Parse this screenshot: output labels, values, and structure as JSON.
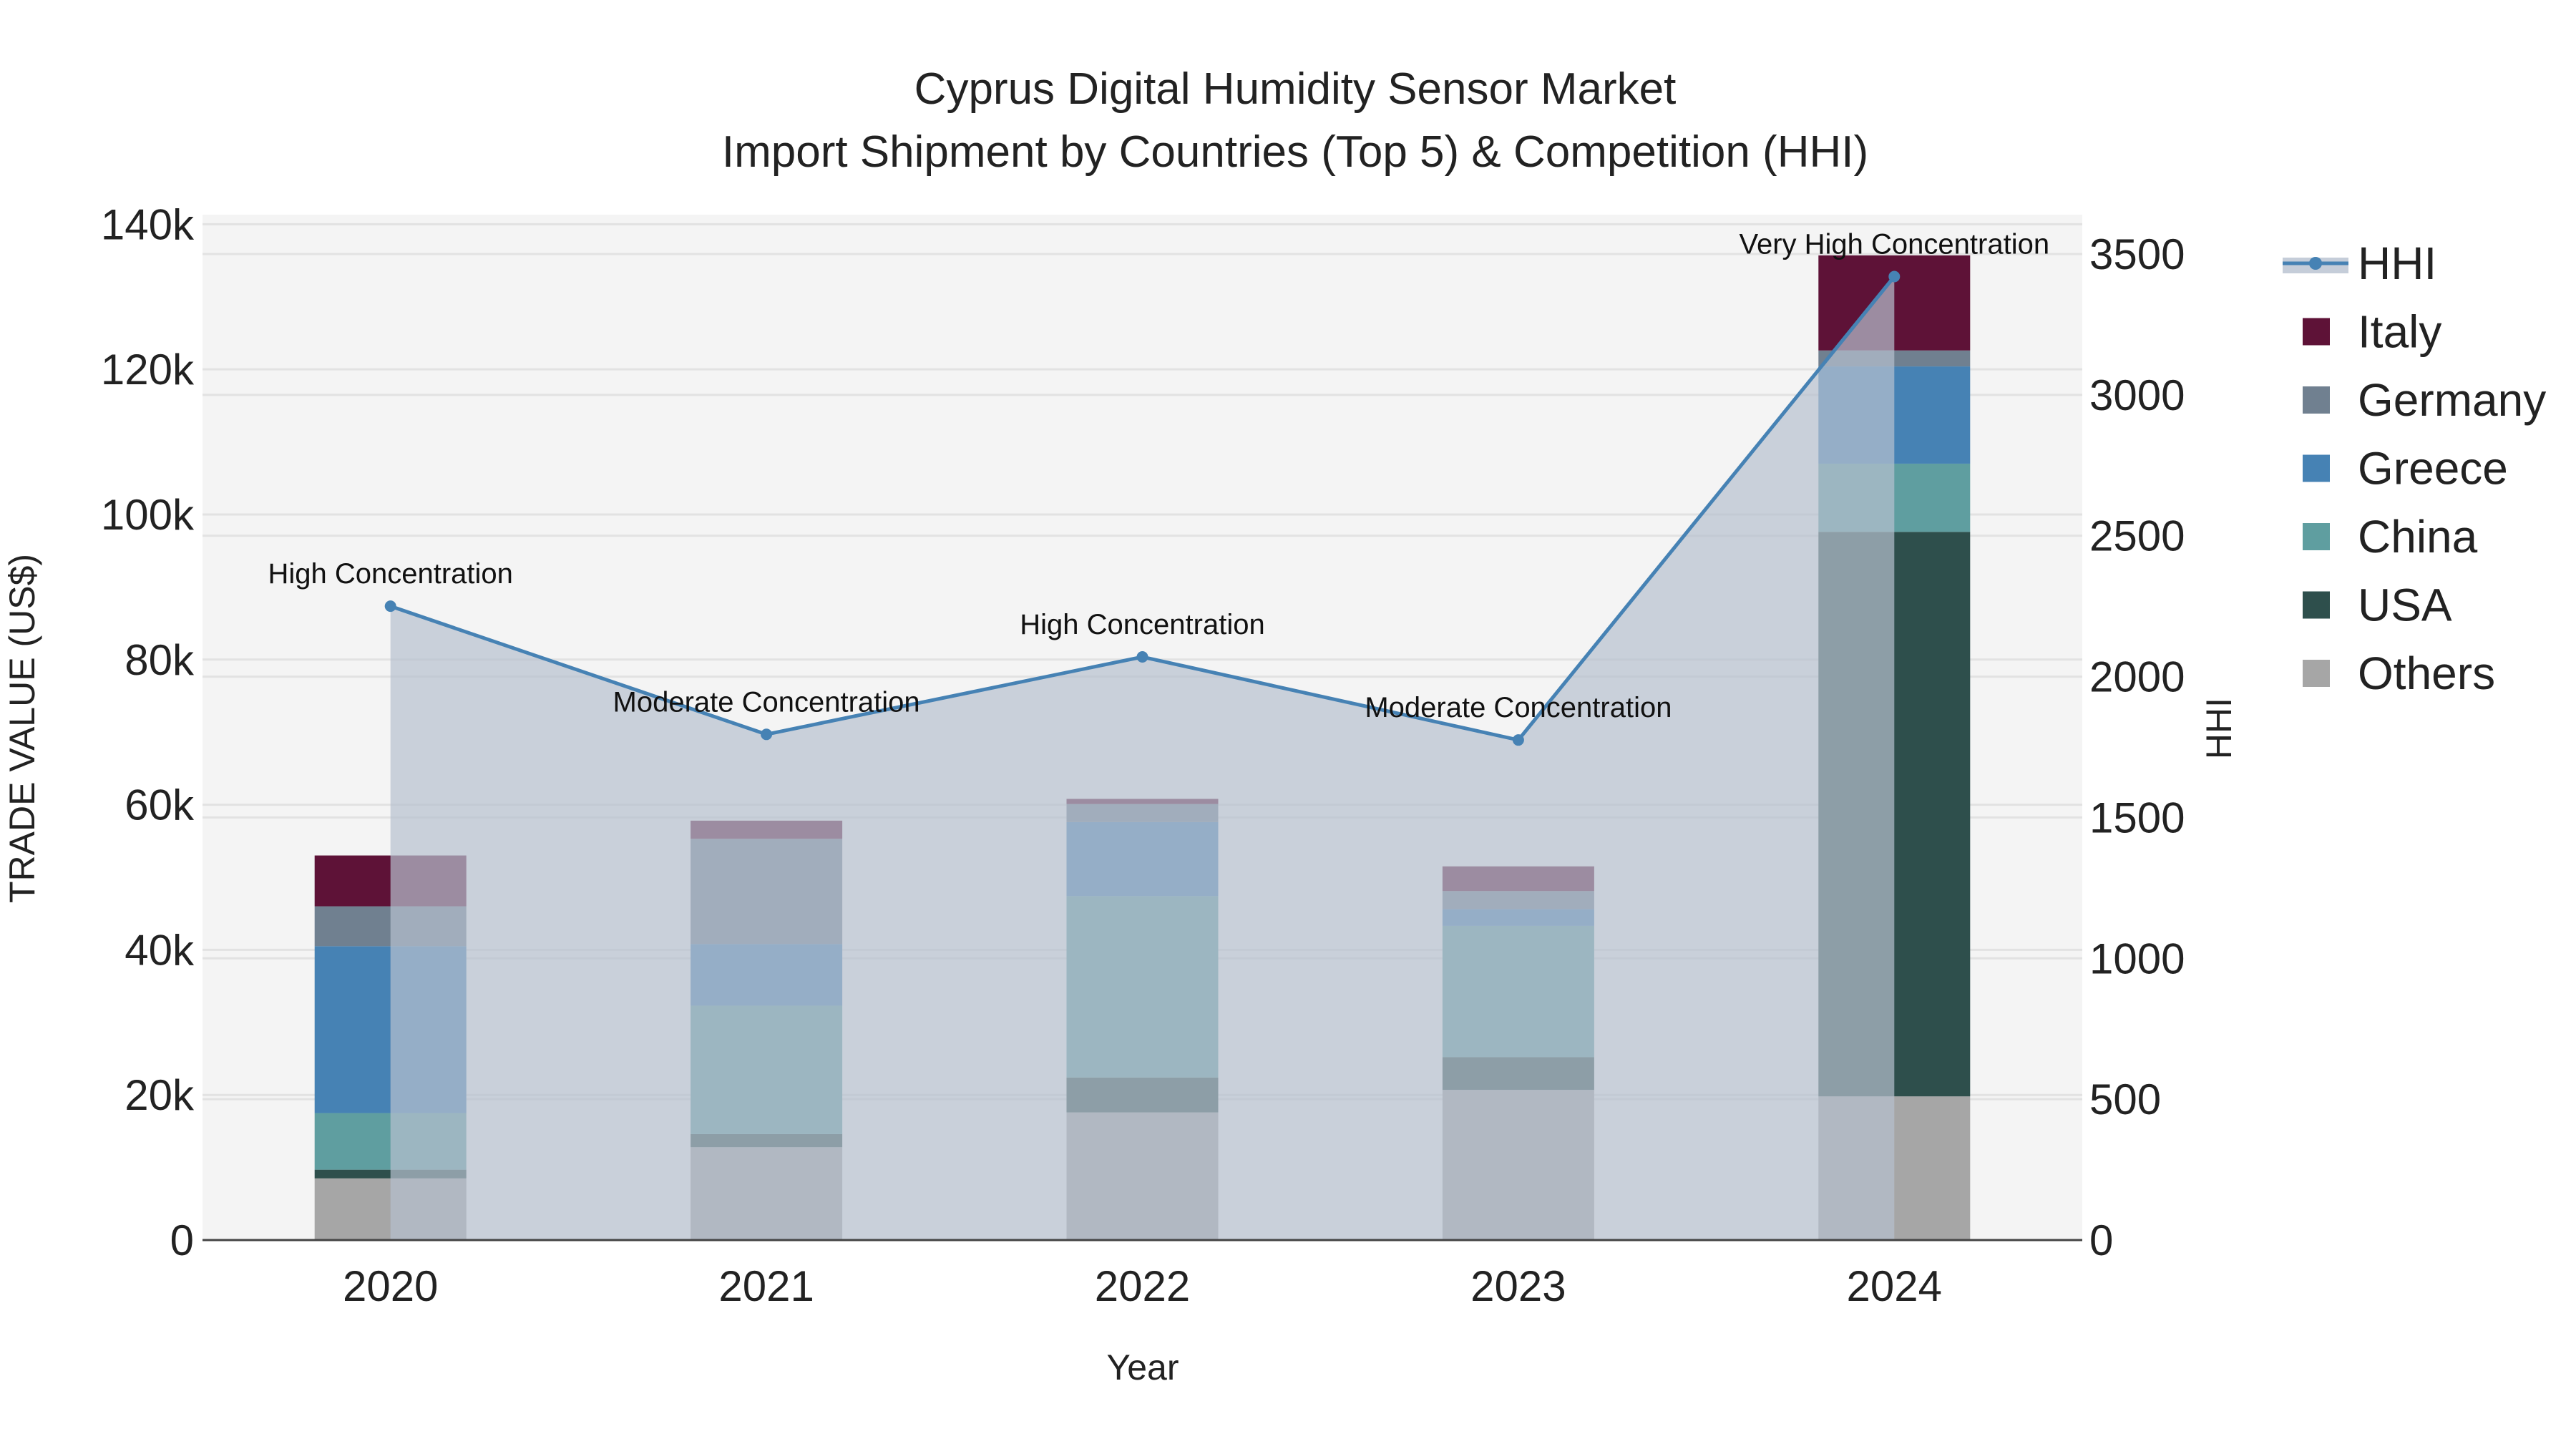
{
  "chart_data": {
    "type": "bar",
    "title_line1": "Cyprus Digital Humidity Sensor Market",
    "title_line2": "Import Shipment by Countries (Top 5) & Competition (HHI)",
    "xlabel": "Year",
    "ylabel": "TRADE VALUE (US$)",
    "y2label": "HHI",
    "categories": [
      "2020",
      "2021",
      "2022",
      "2023",
      "2024"
    ],
    "ylim": [
      0,
      140000
    ],
    "y2lim": [
      0,
      3500
    ],
    "yticks": [
      0,
      20000,
      40000,
      60000,
      80000,
      100000,
      120000,
      140000
    ],
    "ytick_labels": [
      "0",
      "20k",
      "40k",
      "60k",
      "80k",
      "100k",
      "120k",
      "140k"
    ],
    "y2ticks": [
      0,
      500,
      1000,
      1500,
      2000,
      2500,
      3000,
      3500
    ],
    "y2tick_labels": [
      "0",
      "500",
      "1000",
      "1500",
      "2000",
      "2500",
      "3000",
      "3500"
    ],
    "series": [
      {
        "name": "Others",
        "color": "#a6a6a6",
        "values": [
          8500,
          12800,
          17600,
          20700,
          19800
        ]
      },
      {
        "name": "USA",
        "color": "#2e4f4c",
        "values": [
          1200,
          1800,
          4800,
          4500,
          77800
        ]
      },
      {
        "name": "China",
        "color": "#5f9ea0",
        "values": [
          7800,
          17700,
          25000,
          18100,
          9400
        ]
      },
      {
        "name": "Greece",
        "color": "#4682b4",
        "values": [
          23000,
          8500,
          10200,
          2300,
          13400
        ]
      },
      {
        "name": "Germany",
        "color": "#708090",
        "values": [
          5500,
          14500,
          2500,
          2500,
          2200
        ]
      },
      {
        "name": "Italy",
        "color": "#5e1237",
        "values": [
          7000,
          2500,
          700,
          3400,
          13100
        ]
      }
    ],
    "hhi": {
      "name": "HHI",
      "color": "#4682b4",
      "values": [
        2250,
        1795,
        2070,
        1775,
        3420
      ],
      "annotations": [
        "High Concentration",
        "Moderate Concentration",
        "High Concentration",
        "Moderate Concentration",
        "Very High Concentration"
      ]
    },
    "legend_order": [
      "HHI",
      "Italy",
      "Germany",
      "Greece",
      "China",
      "USA",
      "Others"
    ],
    "legend_position": "right",
    "grid": true
  }
}
